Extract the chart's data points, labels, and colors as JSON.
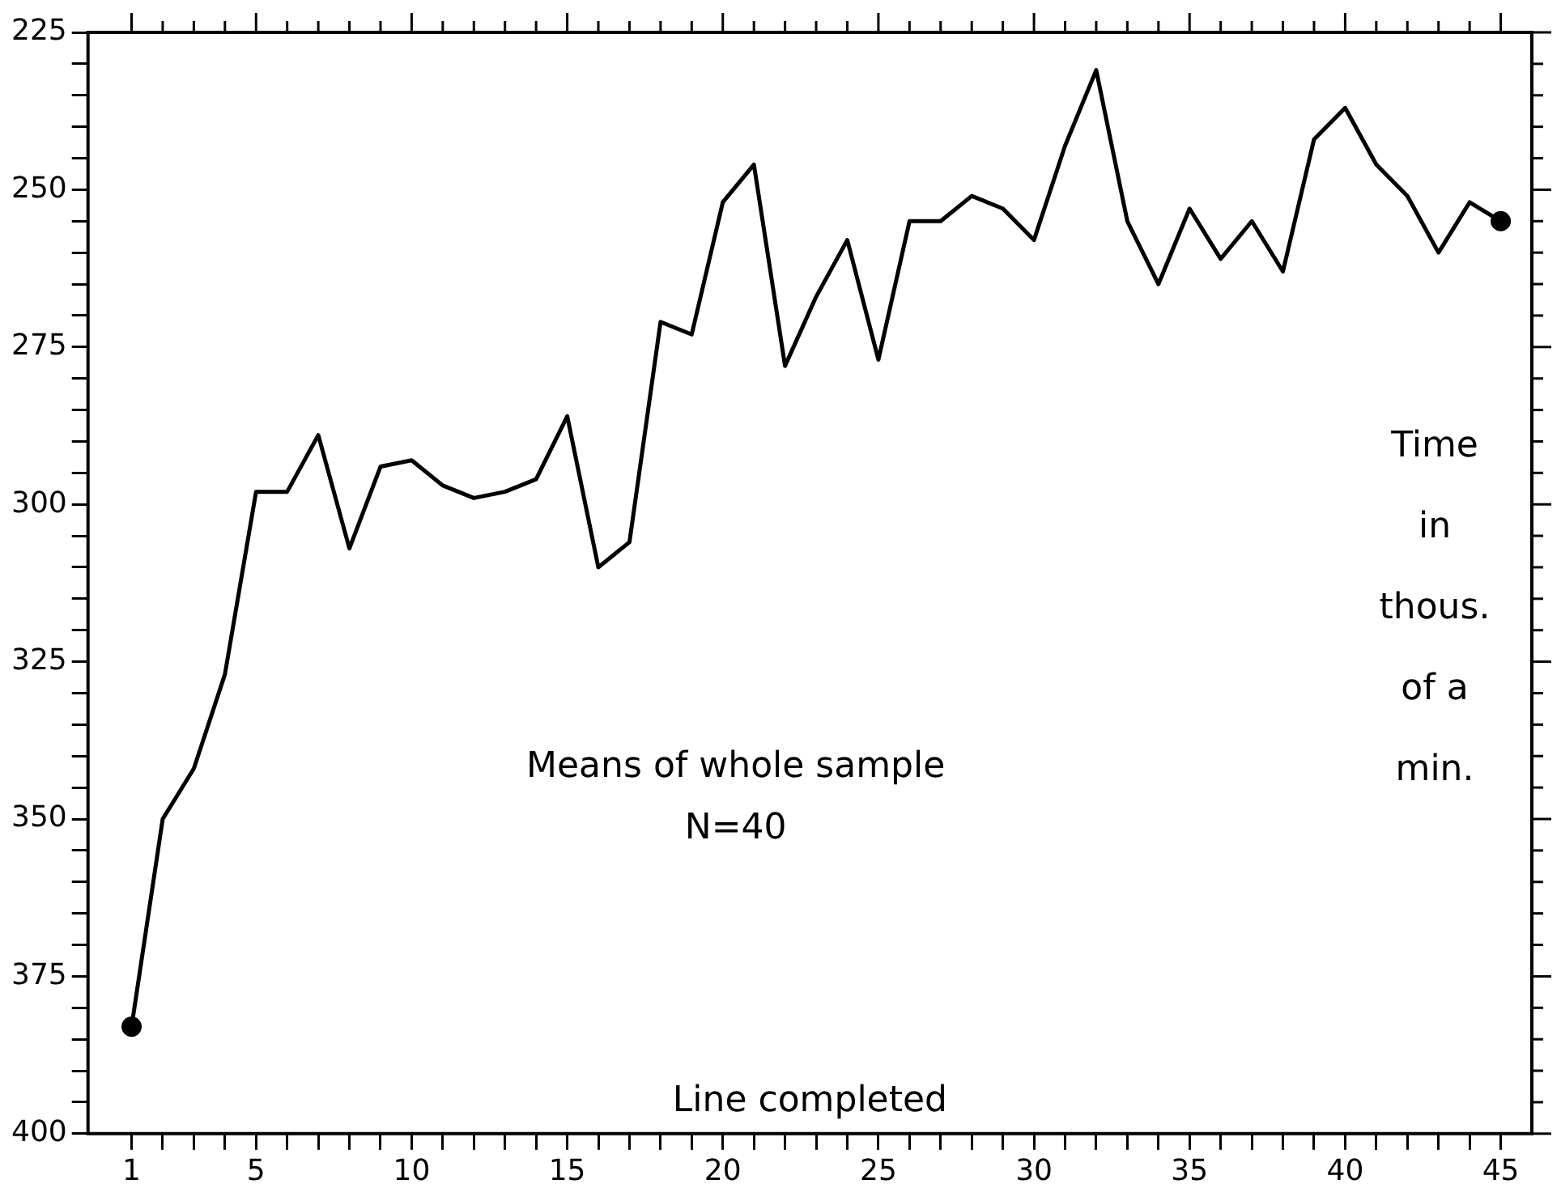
{
  "chart_data": {
    "type": "line",
    "xlabel": "Line completed",
    "ylabel": "Time in thous. of a min.",
    "annotations": [
      "Means of whole sample N=40"
    ],
    "x": [
      1,
      2,
      3,
      4,
      5,
      6,
      7,
      8,
      9,
      10,
      11,
      12,
      13,
      14,
      15,
      16,
      17,
      18,
      19,
      20,
      21,
      22,
      23,
      24,
      25,
      26,
      27,
      28,
      29,
      30,
      31,
      32,
      33,
      34,
      35,
      36,
      37,
      38,
      39,
      40,
      41,
      42,
      43,
      44,
      45
    ],
    "series": [
      {
        "color": "#000000",
        "marker": "none",
        "values": [
          383,
          350,
          342,
          327,
          298,
          298,
          289,
          307,
          294,
          293,
          297,
          299,
          298,
          296,
          286,
          310,
          306,
          271,
          273,
          252,
          246,
          278,
          267,
          258,
          277,
          255,
          255,
          251,
          253,
          258,
          243,
          231,
          255,
          265,
          253,
          261,
          255,
          263,
          242,
          237,
          246,
          251,
          260,
          252,
          255
        ]
      },
      {
        "type": "scatter",
        "color": "#000000",
        "marker": "circle",
        "x": [
          1,
          45
        ],
        "values": [
          383,
          255
        ]
      }
    ],
    "line_style": "solid",
    "xlim": [
      -0.4,
      46
    ],
    "xticks": [
      1,
      {
        "value": 2,
        "label": null
      },
      {
        "value": 3,
        "label": null
      },
      {
        "value": 4,
        "label": null
      },
      5,
      {
        "value": 6,
        "label": null
      },
      {
        "value": 7,
        "label": null
      },
      {
        "value": 8,
        "label": null
      },
      {
        "value": 9,
        "label": null
      },
      10,
      {
        "value": 11,
        "label": null
      },
      {
        "value": 12,
        "label": null
      },
      {
        "value": 13,
        "label": null
      },
      {
        "value": 14,
        "label": null
      },
      15,
      {
        "value": 16,
        "label": null
      },
      {
        "value": 17,
        "label": null
      },
      {
        "value": 18,
        "label": null
      },
      {
        "value": 19,
        "label": null
      },
      20,
      {
        "value": 21,
        "label": null
      },
      {
        "value": 22,
        "label": null
      },
      {
        "value": 23,
        "label": null
      },
      {
        "value": 24,
        "label": null
      },
      25,
      {
        "value": 26,
        "label": null
      },
      {
        "value": 27,
        "label": null
      },
      {
        "value": 28,
        "label": null
      },
      {
        "value": 29,
        "label": null
      },
      30,
      {
        "value": 31,
        "label": null
      },
      {
        "value": 32,
        "label": null
      },
      {
        "value": 33,
        "label": null
      },
      {
        "value": 34,
        "label": null
      },
      35,
      {
        "value": 36,
        "label": null
      },
      {
        "value": 37,
        "label": null
      },
      {
        "value": 38,
        "label": null
      },
      {
        "value": 39,
        "label": null
      },
      40,
      {
        "value": 41,
        "label": null
      },
      {
        "value": 42,
        "label": null
      },
      {
        "value": 43,
        "label": null
      },
      {
        "value": 44,
        "label": null
      },
      45
    ],
    "ylim": [
      400,
      225
    ],
    "yticks": [
      400,
      {
        "value": 395,
        "label": null
      },
      {
        "value": 390,
        "label": null
      },
      {
        "value": 385,
        "label": null
      },
      {
        "value": 380,
        "label": null
      },
      375,
      {
        "value": 370,
        "label": null
      },
      {
        "value": 365,
        "label": null
      },
      {
        "value": 360,
        "label": null
      },
      {
        "value": 355,
        "label": null
      },
      350,
      {
        "value": 345,
        "label": null
      },
      {
        "value": 340,
        "label": null
      },
      {
        "value": 335,
        "label": null
      },
      {
        "value": 330,
        "label": null
      },
      325,
      {
        "value": 320,
        "label": null
      },
      {
        "value": 315,
        "label": null
      },
      {
        "value": 310,
        "label": null
      },
      {
        "value": 305,
        "label": null
      },
      300,
      {
        "value": 295,
        "label": null
      },
      {
        "value": 290,
        "label": null
      },
      {
        "value": 285,
        "label": null
      },
      {
        "value": 280,
        "label": null
      },
      275,
      {
        "value": 270,
        "label": null
      },
      {
        "value": 265,
        "label": null
      },
      {
        "value": 260,
        "label": null
      },
      {
        "value": 255,
        "label": null
      },
      250,
      {
        "value": 245,
        "label": null
      },
      {
        "value": 240,
        "label": null
      },
      {
        "value": 235,
        "label": null
      },
      {
        "value": 230,
        "label": null
      },
      225
    ]
  }
}
